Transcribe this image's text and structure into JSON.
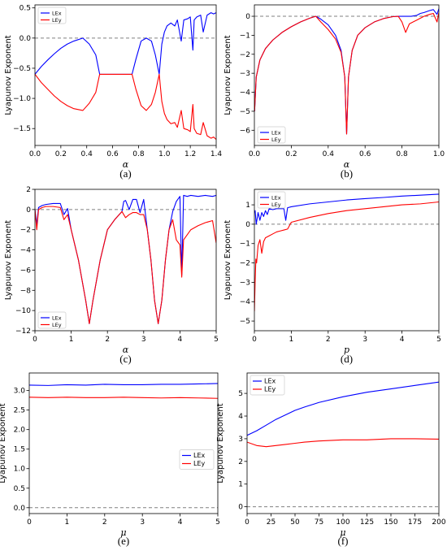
{
  "colors": {
    "LEx": "#0000ff",
    "LEy": "#ff0000",
    "zero_line": "#808080"
  },
  "chart_data": [
    {
      "id": "a",
      "caption": "(a)",
      "type": "line",
      "xlabel": "α",
      "ylabel": "Lyapunov Exponent",
      "xlim": [
        0,
        1.4
      ],
      "ylim": [
        -1.78,
        0.55
      ],
      "xticks": [
        0.0,
        0.2,
        0.4,
        0.6,
        0.8,
        1.0,
        1.2,
        1.4
      ],
      "xtick_labels": [
        "0.0",
        "0.2",
        "0.4",
        "0.6",
        "0.8",
        "1.0",
        "1.2",
        "1.4"
      ],
      "yticks": [
        -1.5,
        -1.0,
        -0.5,
        0.0,
        0.5
      ],
      "ytick_labels": [
        "−1.5",
        "−1.0",
        "−0.5",
        "0.0",
        "0.5"
      ],
      "zero_line": 0,
      "legend": "top-left",
      "series": [
        {
          "name": "LEx",
          "color": "#0000ff",
          "x": [
            0,
            0.05,
            0.1,
            0.15,
            0.2,
            0.25,
            0.3,
            0.37,
            0.42,
            0.47,
            0.5,
            0.55,
            0.65,
            0.75,
            0.78,
            0.82,
            0.86,
            0.9,
            0.93,
            0.96,
            0.98,
            1.0,
            1.02,
            1.05,
            1.08,
            1.1,
            1.13,
            1.15,
            1.18,
            1.2,
            1.22,
            1.23,
            1.25,
            1.28,
            1.3,
            1.33,
            1.36,
            1.38,
            1.4
          ],
          "y": [
            -0.6,
            -0.47,
            -0.36,
            -0.26,
            -0.17,
            -0.1,
            -0.05,
            0.0,
            -0.1,
            -0.28,
            -0.6,
            -0.6,
            -0.6,
            -0.6,
            -0.35,
            -0.05,
            0.0,
            -0.05,
            -0.28,
            -0.6,
            -0.1,
            0.1,
            0.2,
            0.25,
            0.2,
            0.3,
            -0.05,
            0.3,
            0.32,
            0.35,
            -0.2,
            0.3,
            0.35,
            0.38,
            0.1,
            0.38,
            0.42,
            0.4,
            0.42
          ]
        },
        {
          "name": "LEy",
          "color": "#ff0000",
          "x": [
            0,
            0.05,
            0.1,
            0.15,
            0.2,
            0.25,
            0.3,
            0.37,
            0.42,
            0.47,
            0.5,
            0.55,
            0.65,
            0.75,
            0.78,
            0.82,
            0.86,
            0.9,
            0.93,
            0.96,
            0.98,
            1.0,
            1.02,
            1.05,
            1.08,
            1.1,
            1.13,
            1.15,
            1.18,
            1.2,
            1.22,
            1.23,
            1.25,
            1.28,
            1.3,
            1.33,
            1.36,
            1.38,
            1.4
          ],
          "y": [
            -0.6,
            -0.74,
            -0.85,
            -0.96,
            -1.05,
            -1.12,
            -1.17,
            -1.2,
            -1.08,
            -0.9,
            -0.6,
            -0.6,
            -0.6,
            -0.6,
            -0.85,
            -1.12,
            -1.2,
            -1.1,
            -0.9,
            -0.6,
            -1.05,
            -1.25,
            -1.35,
            -1.42,
            -1.4,
            -1.48,
            -1.2,
            -1.5,
            -1.52,
            -1.55,
            -1.1,
            -1.5,
            -1.58,
            -1.6,
            -1.4,
            -1.62,
            -1.66,
            -1.64,
            -1.68
          ]
        }
      ]
    },
    {
      "id": "b",
      "caption": "(b)",
      "type": "line",
      "xlabel": "α",
      "ylabel": "Lyapunov Exponent",
      "xlim": [
        0,
        1.0
      ],
      "ylim": [
        -6.8,
        0.6
      ],
      "xticks": [
        0.0,
        0.2,
        0.4,
        0.6,
        0.8,
        1.0
      ],
      "xtick_labels": [
        "0.0",
        "0.2",
        "0.4",
        "0.6",
        "0.8",
        "1.0"
      ],
      "yticks": [
        -6,
        -5,
        -4,
        -3,
        -2,
        -1,
        0
      ],
      "ytick_labels": [
        "−6",
        "−5",
        "−4",
        "−3",
        "−2",
        "−1",
        "0"
      ],
      "zero_line": 0,
      "legend": "bottom-left",
      "series": [
        {
          "name": "LEx",
          "color": "#0000ff",
          "x": [
            0.001,
            0.01,
            0.03,
            0.06,
            0.1,
            0.15,
            0.2,
            0.25,
            0.3,
            0.333,
            0.36,
            0.4,
            0.44,
            0.47,
            0.49,
            0.5,
            0.51,
            0.53,
            0.56,
            0.6,
            0.65,
            0.7,
            0.75,
            0.78,
            0.8,
            0.85,
            0.88,
            0.9,
            0.92,
            0.95,
            0.97,
            0.99,
            1.0
          ],
          "y": [
            -5.0,
            -3.2,
            -2.3,
            -1.7,
            -1.25,
            -0.85,
            -0.55,
            -0.3,
            -0.1,
            0.0,
            -0.15,
            -0.45,
            -1.0,
            -1.8,
            -3.2,
            -6.2,
            -3.2,
            -1.8,
            -1.0,
            -0.6,
            -0.3,
            -0.12,
            -0.02,
            0.0,
            0.0,
            0.0,
            0.05,
            0.15,
            0.2,
            0.3,
            0.35,
            0.1,
            0.4
          ]
        },
        {
          "name": "LEy",
          "color": "#ff0000",
          "x": [
            0.001,
            0.01,
            0.03,
            0.06,
            0.1,
            0.15,
            0.2,
            0.25,
            0.3,
            0.333,
            0.36,
            0.4,
            0.44,
            0.47,
            0.49,
            0.5,
            0.51,
            0.53,
            0.56,
            0.6,
            0.65,
            0.7,
            0.75,
            0.78,
            0.8,
            0.82,
            0.84,
            0.88,
            0.9,
            0.92,
            0.95,
            0.97,
            0.99,
            1.0
          ],
          "y": [
            -5.0,
            -3.2,
            -2.3,
            -1.7,
            -1.25,
            -0.85,
            -0.55,
            -0.3,
            -0.1,
            0.0,
            -0.3,
            -0.7,
            -1.2,
            -1.9,
            -3.2,
            -6.2,
            -3.2,
            -1.8,
            -1.0,
            -0.6,
            -0.3,
            -0.12,
            -0.02,
            0.0,
            -0.3,
            -0.85,
            -0.4,
            -0.2,
            -0.1,
            0.0,
            0.1,
            0.15,
            -0.3,
            0.2
          ]
        }
      ]
    },
    {
      "id": "c",
      "caption": "(c)",
      "type": "line",
      "xlabel": "α",
      "ylabel": "Lyapunov Exponent",
      "xlim": [
        0,
        5
      ],
      "ylim": [
        -12,
        2
      ],
      "xticks": [
        0,
        1,
        2,
        3,
        4,
        5
      ],
      "xtick_labels": [
        "0",
        "1",
        "2",
        "3",
        "4",
        "5"
      ],
      "yticks": [
        -12,
        -10,
        -8,
        -6,
        -4,
        -2,
        0,
        2
      ],
      "ytick_labels": [
        "−12",
        "−10",
        "−8",
        "−6",
        "−4",
        "−2",
        "0",
        "2"
      ],
      "zero_line": 0,
      "legend": "bottom-left",
      "series": [
        {
          "name": "LEx",
          "color": "#0000ff",
          "x": [
            0.0,
            0.05,
            0.1,
            0.2,
            0.3,
            0.5,
            0.7,
            0.8,
            0.9,
            1.0,
            1.2,
            1.4,
            1.5,
            1.6,
            1.8,
            2.0,
            2.2,
            2.4,
            2.45,
            2.5,
            2.6,
            2.7,
            2.8,
            2.9,
            3.0,
            3.1,
            3.2,
            3.3,
            3.4,
            3.5,
            3.6,
            3.7,
            3.8,
            3.9,
            4.0,
            4.05,
            4.1,
            4.2,
            4.3,
            4.5,
            4.7,
            4.9,
            5.0
          ],
          "y": [
            0.0,
            -1.5,
            0.2,
            0.4,
            0.5,
            0.6,
            0.6,
            -0.5,
            0.1,
            -2.0,
            -5.0,
            -9.0,
            -11.3,
            -9.0,
            -5.0,
            -2.0,
            -1.0,
            -0.2,
            0.8,
            0.9,
            0.0,
            1.0,
            1.0,
            -0.3,
            1.0,
            -2.0,
            -5.0,
            -9.0,
            -11.3,
            -9.0,
            -5.0,
            -2.0,
            -0.2,
            0.8,
            1.3,
            -6.5,
            1.4,
            1.3,
            1.4,
            1.3,
            1.4,
            1.3,
            1.4
          ]
        },
        {
          "name": "LEy",
          "color": "#ff0000",
          "x": [
            0.0,
            0.05,
            0.1,
            0.2,
            0.3,
            0.5,
            0.7,
            0.8,
            0.9,
            1.0,
            1.2,
            1.4,
            1.5,
            1.6,
            1.8,
            2.0,
            2.2,
            2.4,
            2.45,
            2.5,
            2.6,
            2.7,
            2.8,
            2.9,
            3.0,
            3.1,
            3.2,
            3.3,
            3.4,
            3.5,
            3.6,
            3.7,
            3.8,
            3.9,
            4.0,
            4.05,
            4.1,
            4.2,
            4.3,
            4.5,
            4.7,
            4.9,
            5.0
          ],
          "y": [
            0.0,
            -2.0,
            0.0,
            0.2,
            0.3,
            0.3,
            0.2,
            -1.0,
            -0.5,
            -2.0,
            -5.0,
            -9.0,
            -11.3,
            -9.0,
            -5.0,
            -2.0,
            -1.0,
            -0.2,
            -0.5,
            -0.8,
            -0.5,
            -0.3,
            -0.3,
            -0.5,
            -0.5,
            -2.0,
            -5.0,
            -9.0,
            -11.3,
            -9.0,
            -5.0,
            -2.0,
            -1.0,
            -3.0,
            -3.5,
            -6.7,
            -3.0,
            -2.5,
            -2.0,
            -1.6,
            -1.3,
            -1.1,
            -3.3
          ]
        }
      ]
    },
    {
      "id": "d",
      "caption": "(d)",
      "type": "line",
      "xlabel": "p",
      "ylabel": "Lyapunov Exponent",
      "xlim": [
        0,
        5
      ],
      "ylim": [
        -5.5,
        1.8
      ],
      "xticks": [
        0,
        1,
        2,
        3,
        4,
        5
      ],
      "xtick_labels": [
        "0",
        "1",
        "2",
        "3",
        "4",
        "5"
      ],
      "yticks": [
        -5,
        -4,
        -3,
        -2,
        -1,
        0,
        1
      ],
      "ytick_labels": [
        "−5",
        "−4",
        "−3",
        "−2",
        "−1",
        "0",
        "1"
      ],
      "zero_line": 0,
      "legend": "top-left",
      "series": [
        {
          "name": "LEx",
          "color": "#0000ff",
          "x": [
            0.0,
            0.02,
            0.05,
            0.1,
            0.15,
            0.2,
            0.25,
            0.3,
            0.35,
            0.4,
            0.5,
            0.6,
            0.7,
            0.8,
            0.85,
            0.9,
            1.0,
            1.5,
            2.0,
            2.5,
            3.0,
            3.5,
            4.0,
            4.5,
            5.0
          ],
          "y": [
            0.6,
            0.7,
            0.0,
            0.6,
            0.2,
            0.6,
            0.4,
            0.7,
            0.5,
            0.8,
            0.75,
            0.8,
            0.8,
            0.8,
            0.2,
            0.85,
            0.9,
            1.05,
            1.15,
            1.25,
            1.32,
            1.38,
            1.45,
            1.5,
            1.55
          ]
        },
        {
          "name": "LEy",
          "color": "#ff0000",
          "x": [
            0.0,
            0.02,
            0.04,
            0.06,
            0.1,
            0.15,
            0.2,
            0.25,
            0.3,
            0.4,
            0.5,
            0.6,
            0.7,
            0.8,
            0.9,
            1.0,
            1.5,
            2.0,
            2.5,
            3.0,
            3.5,
            4.0,
            4.5,
            5.0
          ],
          "y": [
            -4.5,
            -3.0,
            -1.8,
            -2.0,
            -1.1,
            -0.8,
            -1.5,
            -0.9,
            -0.7,
            -0.6,
            -0.5,
            -0.4,
            -0.35,
            -0.3,
            -0.25,
            0.1,
            0.35,
            0.55,
            0.7,
            0.8,
            0.9,
            1.0,
            1.05,
            1.15
          ]
        }
      ]
    },
    {
      "id": "e",
      "caption": "(e)",
      "type": "line",
      "xlabel": "μ",
      "ylabel": "Lyapunov Exponent",
      "xlim": [
        0,
        5
      ],
      "ylim": [
        -0.15,
        3.45
      ],
      "xticks": [
        0,
        1,
        2,
        3,
        4,
        5
      ],
      "xtick_labels": [
        "0",
        "1",
        "2",
        "3",
        "4",
        "5"
      ],
      "yticks": [
        0.0,
        0.5,
        1.0,
        1.5,
        2.0,
        2.5,
        3.0
      ],
      "ytick_labels": [
        "0.0",
        "0.5",
        "1.0",
        "1.5",
        "2.0",
        "2.5",
        "3.0"
      ],
      "zero_line": 0,
      "legend": "center-right",
      "series": [
        {
          "name": "LEx",
          "color": "#0000ff",
          "x": [
            0,
            0.5,
            1,
            1.5,
            2,
            2.5,
            3,
            3.5,
            4,
            4.5,
            5
          ],
          "y": [
            3.14,
            3.13,
            3.15,
            3.14,
            3.16,
            3.15,
            3.15,
            3.16,
            3.16,
            3.17,
            3.18
          ]
        },
        {
          "name": "LEy",
          "color": "#ff0000",
          "x": [
            0,
            0.5,
            1,
            1.5,
            2,
            2.5,
            3,
            3.5,
            4,
            4.5,
            5
          ],
          "y": [
            2.83,
            2.82,
            2.83,
            2.82,
            2.82,
            2.83,
            2.82,
            2.81,
            2.82,
            2.81,
            2.8
          ]
        }
      ]
    },
    {
      "id": "f",
      "caption": "(f)",
      "type": "line",
      "xlabel": "μ",
      "ylabel": "Lyapunov Exponent",
      "xlim": [
        0,
        200
      ],
      "ylim": [
        -0.3,
        5.9
      ],
      "xticks": [
        0,
        25,
        50,
        75,
        100,
        125,
        150,
        175,
        200
      ],
      "xtick_labels": [
        "0",
        "25",
        "50",
        "75",
        "100",
        "125",
        "150",
        "175",
        "200"
      ],
      "yticks": [
        0,
        1,
        2,
        3,
        4,
        5
      ],
      "ytick_labels": [
        "0",
        "1",
        "2",
        "3",
        "4",
        "5"
      ],
      "zero_line": 0,
      "legend": "top-left",
      "series": [
        {
          "name": "LEx",
          "color": "#0000ff",
          "x": [
            0,
            10,
            20,
            30,
            40,
            50,
            60,
            75,
            100,
            125,
            150,
            175,
            200
          ],
          "y": [
            3.15,
            3.35,
            3.6,
            3.85,
            4.05,
            4.25,
            4.4,
            4.6,
            4.85,
            5.05,
            5.2,
            5.35,
            5.5
          ]
        },
        {
          "name": "LEy",
          "color": "#ff0000",
          "x": [
            0,
            10,
            20,
            30,
            40,
            50,
            60,
            75,
            100,
            125,
            150,
            175,
            200
          ],
          "y": [
            2.85,
            2.7,
            2.65,
            2.7,
            2.75,
            2.8,
            2.85,
            2.9,
            2.95,
            2.95,
            3.0,
            3.0,
            2.98
          ]
        }
      ]
    }
  ]
}
